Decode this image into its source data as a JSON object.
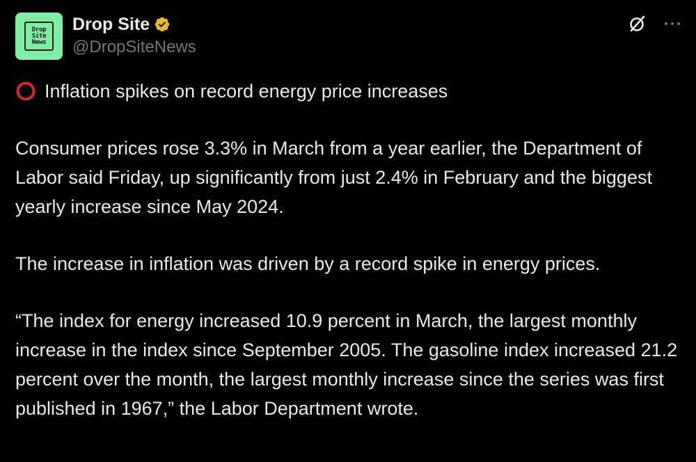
{
  "account": {
    "display_name": "Drop Site",
    "handle": "@DropSiteNews",
    "avatar_lines": [
      "Drop",
      "Site",
      "News"
    ],
    "avatar_color": "#7ff0a3",
    "verified_icon": "verified-badge-icon",
    "verified_color": "#e8b923"
  },
  "actions": {
    "grok_icon": "grok-icon",
    "more_icon": "more-icon"
  },
  "post": {
    "headline_icon": "hollow-red-circle-icon",
    "headline_icon_color": "#d7262f",
    "headline": "Inflation spikes on record energy price increases",
    "paragraph_1": "Consumer prices rose 3.3% in March from a year earlier, the Department of Labor said Friday, up significantly from just 2.4% in February and the biggest yearly increase since May 2024.",
    "paragraph_2": "The increase in inflation was driven by a record spike in energy prices.",
    "paragraph_3": "“The index for energy increased 10.9 percent in March, the largest monthly increase in the index since September 2005. The gasoline index increased 21.2 percent over the month, the largest monthly increase since the series was first published in 1967,” the Labor Department wrote."
  }
}
